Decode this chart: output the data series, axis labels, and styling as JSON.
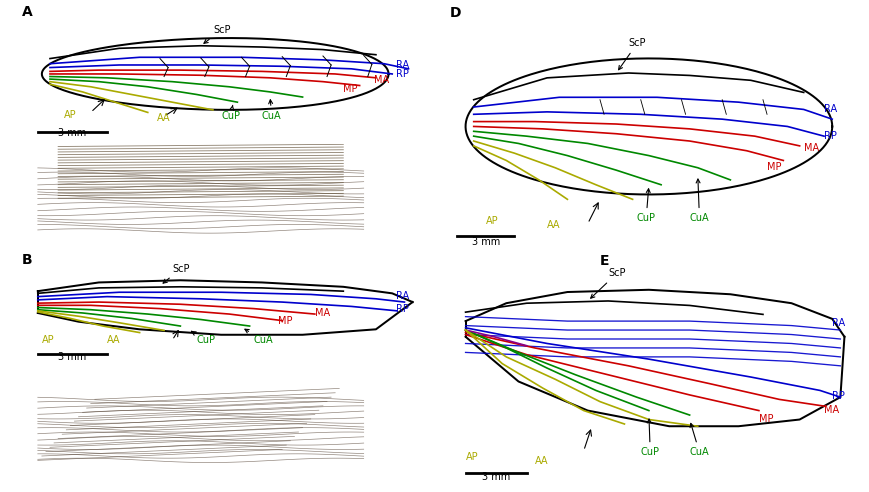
{
  "background_color": "#ffffff",
  "panel_labels": [
    "A",
    "B",
    "D",
    "E"
  ],
  "label_color": "#000000",
  "colors": {
    "black": "#000000",
    "blue": "#0000cc",
    "red": "#cc0000",
    "green": "#008800",
    "yellow": "#aaaa00",
    "purple": "#880088",
    "gray": "#888888"
  },
  "scale_bar_label": "3 mm"
}
